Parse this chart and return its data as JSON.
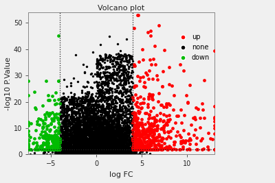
{
  "title": "Volcano plot",
  "xlabel": "log FC",
  "ylabel": "-log10 P.Value",
  "xlim": [
    -7.5,
    13
  ],
  "ylim": [
    0,
    54
  ],
  "xticks": [
    -5,
    0,
    5,
    10
  ],
  "yticks": [
    0,
    10,
    20,
    30,
    40,
    50
  ],
  "fc_threshold_up": 4,
  "fc_threshold_down": -4,
  "pval_threshold": 2,
  "vline1": -4,
  "vline2": 4,
  "hline": 2,
  "legend_labels": [
    "up",
    "none",
    "down"
  ],
  "legend_colors": [
    "#FF0000",
    "#000000",
    "#00BB00"
  ],
  "dot_size": 6,
  "background_color": "#f0f0f0",
  "random_seed": 12345
}
